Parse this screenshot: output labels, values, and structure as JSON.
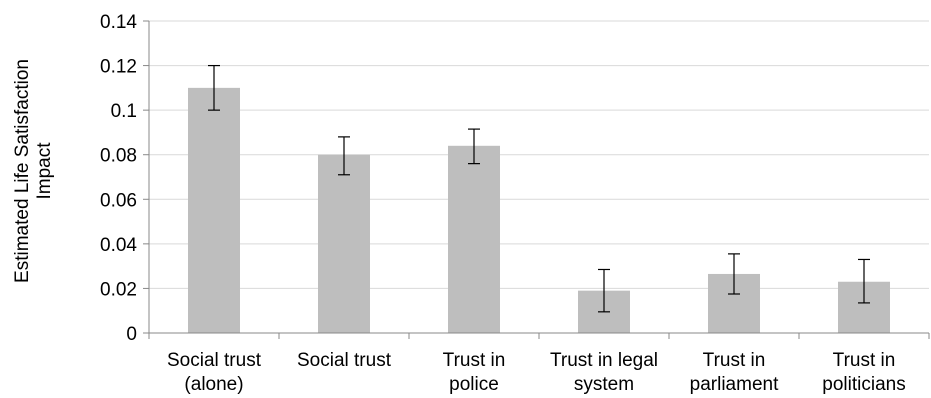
{
  "chart_data": {
    "type": "bar",
    "title": "",
    "xlabel": "",
    "ylabel": [
      "Estimated Life Satisfaction",
      "Impact"
    ],
    "ylim": [
      0,
      0.14
    ],
    "yticks": [
      0,
      0.02,
      0.04,
      0.06,
      0.08,
      0.1,
      0.12,
      0.14
    ],
    "ytick_labels": [
      "0",
      "0.02",
      "0.04",
      "0.06",
      "0.08",
      "0.1",
      "0.12",
      "0.14"
    ],
    "grid": true,
    "legend": "none",
    "bar_color": "#bebebe",
    "categories": [
      [
        "Social trust",
        "(alone)"
      ],
      [
        "Social trust"
      ],
      [
        "Trust in",
        "police"
      ],
      [
        "Trust in legal",
        "system"
      ],
      [
        "Trust in",
        "parliament"
      ],
      [
        "Trust in",
        "politicians"
      ]
    ],
    "values": [
      0.11,
      0.08,
      0.084,
      0.019,
      0.0265,
      0.023
    ],
    "error_low": [
      0.1,
      0.071,
      0.076,
      0.0095,
      0.0175,
      0.0135
    ],
    "error_high": [
      0.12,
      0.088,
      0.0915,
      0.0285,
      0.0355,
      0.033
    ]
  }
}
